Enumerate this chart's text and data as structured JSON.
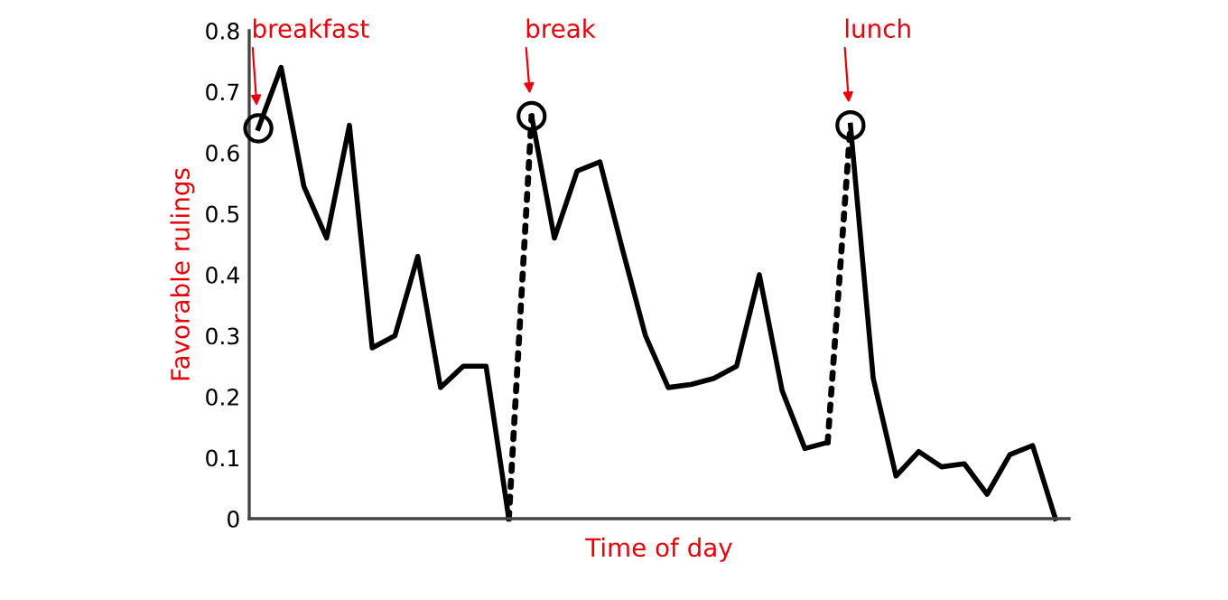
{
  "chart_data": {
    "type": "line",
    "xlabel": "Time of day",
    "ylabel": "Favorable rulings",
    "categories": [
      null,
      null,
      null,
      null,
      null,
      null,
      null,
      null,
      null,
      null,
      null,
      null,
      null,
      null,
      null,
      null,
      null,
      null,
      null,
      null,
      null,
      null,
      null,
      null,
      null,
      null,
      null,
      null,
      null,
      null,
      null,
      null,
      null,
      null,
      null,
      null
    ],
    "ylim": [
      0,
      0.8
    ],
    "yticks": [
      0,
      0.1,
      0.2,
      0.3,
      0.4,
      0.5,
      0.6,
      0.7,
      0.8
    ],
    "tick_labels": "y",
    "grid": false,
    "series": [
      {
        "color": "#000000",
        "line_style": "solid",
        "values": [
          0.64,
          0.74,
          0.545,
          0.46,
          0.645,
          0.28,
          0.3,
          0.43,
          0.215,
          0.25,
          0.25,
          0,
          null,
          null,
          null,
          null,
          null,
          null,
          null,
          null,
          null,
          null,
          null,
          null,
          null,
          null,
          null,
          null,
          null,
          null,
          null,
          null,
          null,
          null,
          null,
          null
        ]
      },
      {
        "color": "#000000",
        "line_style": "solid",
        "values": [
          null,
          null,
          null,
          null,
          null,
          null,
          null,
          null,
          null,
          null,
          null,
          null,
          0.66,
          0.46,
          0.57,
          0.585,
          0.44,
          0.3,
          0.215,
          0.22,
          0.23,
          0.25,
          0.4,
          0.21,
          0.115,
          0.125,
          null,
          null,
          null,
          null,
          null,
          null,
          null,
          null,
          null,
          null
        ]
      },
      {
        "color": "#000000",
        "line_style": "solid",
        "values": [
          null,
          null,
          null,
          null,
          null,
          null,
          null,
          null,
          null,
          null,
          null,
          null,
          null,
          null,
          null,
          null,
          null,
          null,
          null,
          null,
          null,
          null,
          null,
          null,
          null,
          null,
          0.645,
          0.23,
          0.07,
          0.11,
          0.085,
          0.09,
          0.04,
          0.105,
          0.12,
          0
        ]
      },
      {
        "color": "#000000",
        "line_style": "dotted",
        "values": [
          null,
          null,
          null,
          null,
          null,
          null,
          null,
          null,
          null,
          null,
          null,
          0,
          0.66,
          null,
          null,
          null,
          null,
          null,
          null,
          null,
          null,
          null,
          null,
          null,
          null,
          0.125,
          0.645,
          null,
          null,
          null,
          null,
          null,
          null,
          null,
          null,
          null
        ]
      },
      {
        "type": "scatter",
        "marker": "circle",
        "color": "#000000",
        "values": [
          0.64,
          null,
          null,
          null,
          null,
          null,
          null,
          null,
          null,
          null,
          null,
          null,
          0.66,
          null,
          null,
          null,
          null,
          null,
          null,
          null,
          null,
          null,
          null,
          null,
          null,
          null,
          0.645,
          null,
          null,
          null,
          null,
          null,
          null,
          null,
          null,
          null
        ]
      }
    ],
    "annotations": [
      "breakfast",
      "break",
      "lunch"
    ]
  }
}
